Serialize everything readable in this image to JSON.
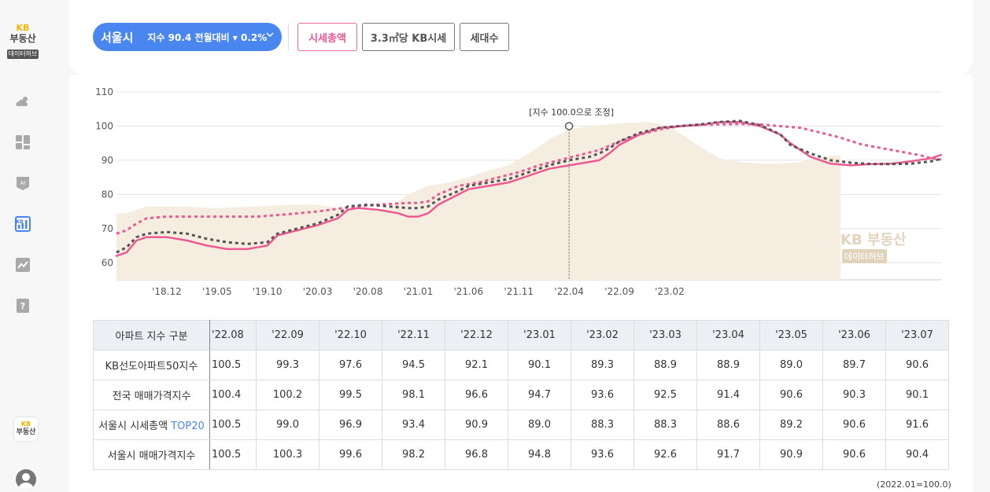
{
  "sidebar": {
    "logo": {
      "kb": "KB",
      "brand": "부동산",
      "sub": "데이터허브"
    },
    "items": [
      {
        "icon": "weather-icon"
      },
      {
        "icon": "dashboard-icon"
      },
      {
        "icon": "ai-icon",
        "label": "AI"
      },
      {
        "icon": "kb-chart-icon",
        "label": "KB"
      },
      {
        "icon": "trend-chart-icon"
      },
      {
        "icon": "help-book-icon",
        "label": "?"
      }
    ],
    "bottom_logo": {
      "kb": "KB",
      "brand": "부동산"
    },
    "colors": {
      "active": "#4a86f0",
      "inactive": "#a9a9a9"
    }
  },
  "header": {
    "city": "서울시",
    "index_text": "지수 90.4  전월대비 ▾ 0.2%",
    "tabs": [
      "시세총액",
      "3.3㎡당 KB시세",
      "세대수"
    ],
    "active_tab": 0,
    "colors": {
      "pill": "#4a86f0",
      "active_tab": "#ec5a92"
    }
  },
  "chart_data": {
    "type": "line",
    "x_tick_labels": [
      "'18.12",
      "'19.05",
      "'19.10",
      "'20.03",
      "'20.08",
      "'21.01",
      "'21.06",
      "'21.11",
      "'22.04",
      "'22.09",
      "'23.02"
    ],
    "y_ticks": [
      110,
      100,
      90,
      80,
      70,
      60
    ],
    "ylim": [
      55,
      110
    ],
    "annotation": "[지수 100.0으로 조정]",
    "annotation_x_month": 45,
    "watermark": {
      "brand": "KB 부동산",
      "sub": "데이터허브"
    },
    "series": [
      {
        "name": "area-series",
        "style": "area",
        "color": "#f5ede0",
        "points": [
          [
            0,
            74.5
          ],
          [
            1,
            74.5
          ],
          [
            2,
            75.5
          ],
          [
            3,
            76.5
          ],
          [
            6,
            76.5
          ],
          [
            10,
            76
          ],
          [
            14,
            76.5
          ],
          [
            18,
            77
          ],
          [
            20,
            77
          ],
          [
            22,
            76
          ],
          [
            25,
            75.2
          ],
          [
            27,
            76
          ],
          [
            29,
            80
          ],
          [
            31,
            82.5
          ],
          [
            33,
            83.5
          ],
          [
            35,
            85
          ],
          [
            37,
            87
          ],
          [
            39,
            88.5
          ],
          [
            41,
            92
          ],
          [
            43,
            96
          ],
          [
            45,
            99
          ],
          [
            47,
            100
          ],
          [
            49,
            100.5
          ],
          [
            51,
            101
          ],
          [
            53,
            101.2
          ],
          [
            55,
            100
          ],
          [
            56,
            98
          ],
          [
            58,
            94
          ],
          [
            60,
            90.5
          ],
          [
            62,
            89.5
          ],
          [
            64,
            89
          ],
          [
            66,
            89
          ],
          [
            68,
            89.5
          ],
          [
            70,
            91
          ],
          [
            72,
            91.5
          ]
        ]
      },
      {
        "name": "pink-solid",
        "style": "solid",
        "color": "#ec5a92",
        "points": [
          [
            0,
            62
          ],
          [
            1,
            63
          ],
          [
            2,
            66.5
          ],
          [
            3,
            67.5
          ],
          [
            5,
            67.5
          ],
          [
            7,
            66.5
          ],
          [
            9,
            65
          ],
          [
            11,
            64
          ],
          [
            13,
            64
          ],
          [
            14,
            64.5
          ],
          [
            15,
            65
          ],
          [
            16,
            68
          ],
          [
            18,
            69.5
          ],
          [
            20,
            71
          ],
          [
            22,
            73
          ],
          [
            23,
            75.5
          ],
          [
            24,
            76
          ],
          [
            26,
            75.5
          ],
          [
            28,
            74.5
          ],
          [
            29,
            73.5
          ],
          [
            30,
            73.5
          ],
          [
            31,
            74.5
          ],
          [
            32,
            77
          ],
          [
            34,
            80
          ],
          [
            35,
            81.5
          ],
          [
            37,
            82.5
          ],
          [
            39,
            83.5
          ],
          [
            41,
            85.5
          ],
          [
            43,
            87.5
          ],
          [
            45,
            88.5
          ],
          [
            47,
            89.5
          ],
          [
            48,
            90
          ],
          [
            49,
            92
          ],
          [
            50,
            94.5
          ],
          [
            52,
            97.5
          ],
          [
            54,
            99.5
          ],
          [
            56,
            100
          ],
          [
            58,
            100.3
          ],
          [
            60,
            101.2
          ],
          [
            62,
            101.2
          ],
          [
            64,
            100
          ],
          [
            66,
            97.5
          ],
          [
            67,
            95
          ],
          [
            69,
            91
          ],
          [
            71,
            89
          ],
          [
            73,
            88.5
          ],
          [
            75,
            88.9
          ],
          [
            77,
            89
          ],
          [
            79,
            89.7
          ],
          [
            81,
            90.6
          ],
          [
            82,
            91.6
          ]
        ]
      },
      {
        "name": "pink-dotted",
        "style": "dotted",
        "color": "#ec5a92",
        "points": [
          [
            0,
            68.5
          ],
          [
            1,
            69.5
          ],
          [
            2,
            71.5
          ],
          [
            3,
            73
          ],
          [
            5,
            73.5
          ],
          [
            8,
            73.5
          ],
          [
            11,
            73.5
          ],
          [
            14,
            73.5
          ],
          [
            17,
            74.2
          ],
          [
            20,
            75
          ],
          [
            23,
            76.2
          ],
          [
            26,
            77
          ],
          [
            29,
            77.5
          ],
          [
            30,
            77.5
          ],
          [
            31,
            78
          ],
          [
            32,
            80
          ],
          [
            34,
            82.5
          ],
          [
            36,
            83.5
          ],
          [
            38,
            85
          ],
          [
            40,
            86.5
          ],
          [
            42,
            88.5
          ],
          [
            44,
            90
          ],
          [
            46,
            91.5
          ],
          [
            48,
            93
          ],
          [
            50,
            95.5
          ],
          [
            52,
            97.5
          ],
          [
            54,
            99
          ],
          [
            56,
            100
          ],
          [
            58,
            100.4
          ],
          [
            60,
            100.5
          ],
          [
            62,
            100.6
          ],
          [
            64,
            100.5
          ],
          [
            66,
            100
          ],
          [
            68,
            99.5
          ],
          [
            70,
            98.1
          ],
          [
            72,
            96.6
          ],
          [
            74,
            94.7
          ],
          [
            76,
            93.6
          ],
          [
            78,
            92.5
          ],
          [
            80,
            91.4
          ],
          [
            81,
            90.6
          ],
          [
            82,
            90.2
          ]
        ]
      },
      {
        "name": "dark-dotted",
        "style": "dotted",
        "color": "#555555",
        "points": [
          [
            0,
            63
          ],
          [
            1,
            64.5
          ],
          [
            2,
            67.5
          ],
          [
            3,
            68.5
          ],
          [
            5,
            69
          ],
          [
            7,
            68.5
          ],
          [
            9,
            67
          ],
          [
            11,
            66
          ],
          [
            13,
            65.5
          ],
          [
            15,
            66
          ],
          [
            16,
            68.5
          ],
          [
            18,
            70
          ],
          [
            20,
            71.5
          ],
          [
            22,
            74
          ],
          [
            23,
            76.5
          ],
          [
            25,
            77
          ],
          [
            27,
            76.5
          ],
          [
            29,
            76
          ],
          [
            30,
            76
          ],
          [
            31,
            76.5
          ],
          [
            32,
            78.5
          ],
          [
            34,
            81
          ],
          [
            35,
            82.5
          ],
          [
            37,
            83.5
          ],
          [
            39,
            84.5
          ],
          [
            41,
            86.5
          ],
          [
            43,
            88.5
          ],
          [
            45,
            90
          ],
          [
            47,
            91
          ],
          [
            48,
            92
          ],
          [
            49,
            93.5
          ],
          [
            50,
            95.5
          ],
          [
            52,
            98
          ],
          [
            54,
            99.5
          ],
          [
            56,
            100
          ],
          [
            58,
            100.5
          ],
          [
            60,
            101.2
          ],
          [
            62,
            101.5
          ],
          [
            64,
            100.3
          ],
          [
            66,
            97.6
          ],
          [
            67,
            94.5
          ],
          [
            69,
            92
          ],
          [
            71,
            90
          ],
          [
            73,
            89.3
          ],
          [
            75,
            88.9
          ],
          [
            77,
            88.9
          ],
          [
            79,
            89
          ],
          [
            81,
            89.7
          ],
          [
            82,
            90.4
          ]
        ]
      }
    ]
  },
  "table": {
    "corner": "아파트 지수 구분",
    "columns": [
      "'22.08",
      "'22.09",
      "'22.10",
      "'22.11",
      "'22.12",
      "'23.01",
      "'23.02",
      "'23.03",
      "'23.04",
      "'23.05",
      "'23.06",
      "'23.07"
    ],
    "rows": [
      {
        "label": "KB선도아파트50지수",
        "values": [
          "100.5",
          "99.3",
          "97.6",
          "94.5",
          "92.1",
          "90.1",
          "89.3",
          "88.9",
          "88.9",
          "89.0",
          "89.7",
          "90.6"
        ]
      },
      {
        "label": "전국 매매가격지수",
        "values": [
          "100.4",
          "100.2",
          "99.5",
          "98.1",
          "96.6",
          "94.7",
          "93.6",
          "92.5",
          "91.4",
          "90.6",
          "90.3",
          "90.1"
        ]
      },
      {
        "label": "서울시 시세총액 ",
        "label_highlight": "TOP20",
        "values": [
          "100.5",
          "99.0",
          "96.9",
          "93.4",
          "90.9",
          "89.0",
          "88.3",
          "88.3",
          "88.6",
          "89.2",
          "90.6",
          "91.6"
        ]
      },
      {
        "label": "서울시 매매가격지수",
        "values": [
          "100.5",
          "100.3",
          "99.6",
          "98.2",
          "96.8",
          "94.8",
          "93.6",
          "92.6",
          "91.7",
          "90.9",
          "90.6",
          "90.4"
        ]
      }
    ],
    "note": "(2022.01=100.0)"
  }
}
